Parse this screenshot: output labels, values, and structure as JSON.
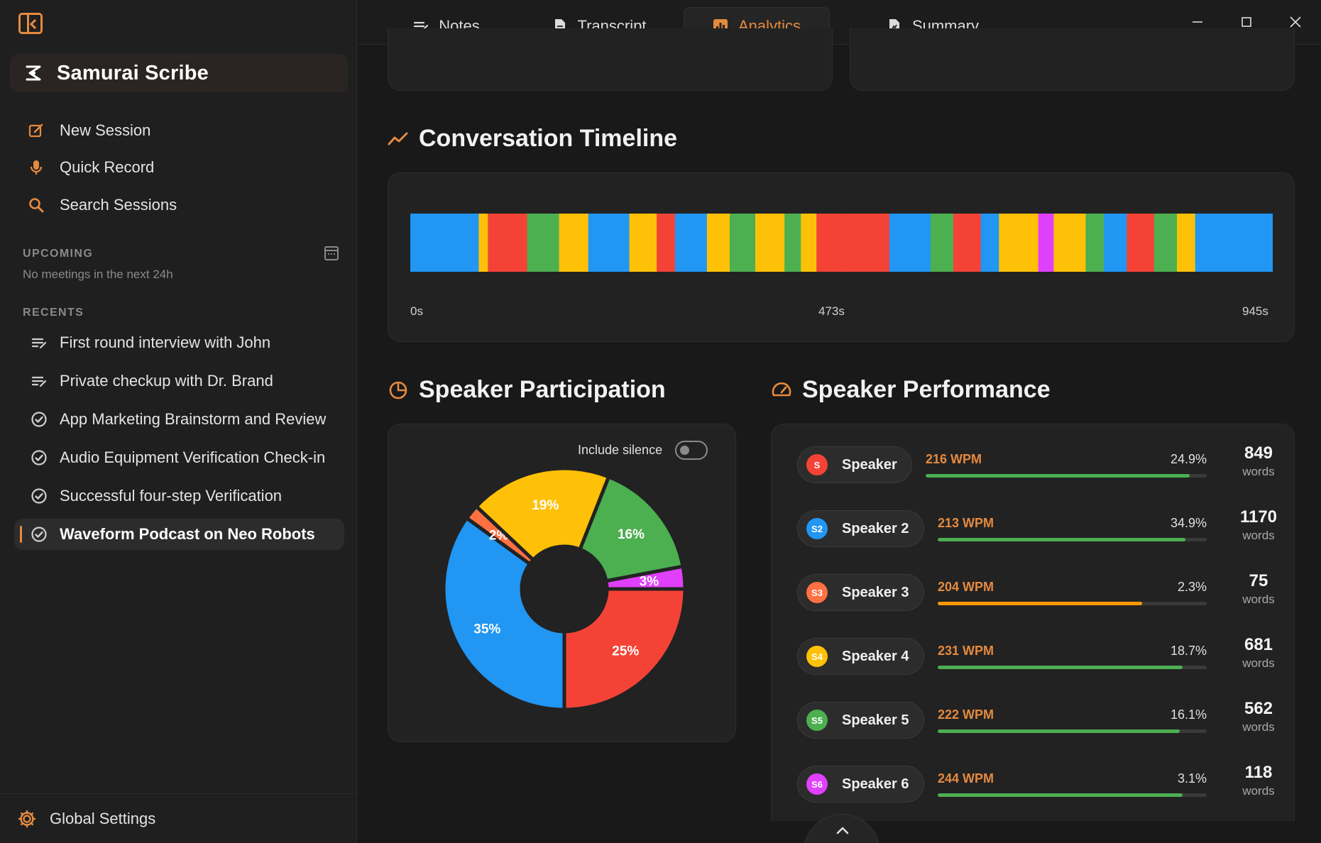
{
  "app": {
    "name": "Samurai Scribe"
  },
  "sidebar": {
    "nav": [
      {
        "label": "New Session",
        "icon": "edit-icon"
      },
      {
        "label": "Quick Record",
        "icon": "microphone-icon"
      },
      {
        "label": "Search Sessions",
        "icon": "search-icon"
      }
    ],
    "upcoming": {
      "heading": "UPCOMING",
      "empty_text": "No meetings in the next 24h"
    },
    "recents": {
      "heading": "RECENTS",
      "items": [
        {
          "label": "First round interview with John",
          "icon": "notes-icon",
          "active": false
        },
        {
          "label": "Private checkup with Dr. Brand",
          "icon": "notes-icon",
          "active": false
        },
        {
          "label": "App Marketing Brainstorm and Review",
          "icon": "check-circle-icon",
          "active": false
        },
        {
          "label": "Audio Equipment Verification Check-in",
          "icon": "check-circle-icon",
          "active": false
        },
        {
          "label": "Successful four-step Verification",
          "icon": "check-circle-icon",
          "active": false
        },
        {
          "label": "Waveform Podcast on Neo Robots",
          "icon": "check-circle-icon",
          "active": true
        }
      ]
    },
    "settings_label": "Global Settings"
  },
  "tabs": [
    {
      "label": "Notes",
      "icon": "notes-icon",
      "active": false
    },
    {
      "label": "Transcript",
      "icon": "document-icon",
      "active": false
    },
    {
      "label": "Analytics",
      "icon": "bar-chart-icon",
      "active": true
    },
    {
      "label": "Summary",
      "icon": "summary-icon",
      "active": false
    }
  ],
  "colors": {
    "accent": "#e58a3e",
    "speaker_red": "#f44336",
    "speaker_blue": "#2196f3",
    "speaker_orange": "#ff7043",
    "speaker_yellow": "#ffc107",
    "speaker_green": "#4caf50",
    "speaker_magenta": "#e040fb"
  },
  "timeline": {
    "title": "Conversation Timeline",
    "axis": {
      "start": "0s",
      "mid": "473s",
      "end": "945s"
    }
  },
  "participation": {
    "title": "Speaker Participation",
    "include_silence_label": "Include silence",
    "include_silence": false
  },
  "performance": {
    "title": "Speaker Performance",
    "words_unit": "words",
    "speakers": [
      {
        "badge": "S",
        "name": "Speaker",
        "wpm": "216 WPM",
        "share": "24.9%",
        "words": "849",
        "level": 0.94,
        "bar": "#4caf50",
        "wpm_color": "#e58a3e"
      },
      {
        "badge": "S2",
        "name": "Speaker 2",
        "wpm": "213 WPM",
        "share": "34.9%",
        "words": "1170",
        "level": 0.92,
        "bar": "#4caf50",
        "wpm_color": "#e58a3e"
      },
      {
        "badge": "S3",
        "name": "Speaker 3",
        "wpm": "204 WPM",
        "share": "2.3%",
        "words": "75",
        "level": 0.76,
        "bar": "#ff9800",
        "wpm_color": "#e58a3e"
      },
      {
        "badge": "S4",
        "name": "Speaker 4",
        "wpm": "231 WPM",
        "share": "18.7%",
        "words": "681",
        "level": 0.91,
        "bar": "#4caf50",
        "wpm_color": "#e58a3e"
      },
      {
        "badge": "S5",
        "name": "Speaker 5",
        "wpm": "222 WPM",
        "share": "16.1%",
        "words": "562",
        "level": 0.9,
        "bar": "#4caf50",
        "wpm_color": "#e58a3e"
      },
      {
        "badge": "S6",
        "name": "Speaker 6",
        "wpm": "244 WPM",
        "share": "3.1%",
        "words": "118",
        "level": 0.91,
        "bar": "#4caf50",
        "wpm_color": "#e58a3e"
      }
    ]
  },
  "chart_data": [
    {
      "type": "pie",
      "categories": [
        "Speaker",
        "Speaker 2",
        "Speaker 3",
        "Speaker 4",
        "Speaker 5",
        "Speaker 6"
      ],
      "values": [
        25,
        35,
        2,
        19,
        16,
        3
      ],
      "labels": [
        "25%",
        "35%",
        "2%",
        "19%",
        "16%",
        "3%"
      ],
      "colors": [
        "#f44336",
        "#2196f3",
        "#ff7043",
        "#ffc107",
        "#4caf50",
        "#e040fb"
      ],
      "donut": true,
      "legend": "none"
    },
    {
      "type": "bar",
      "orientation": "timeline",
      "x_range": [
        0,
        945
      ],
      "x_ticks": [
        "0s",
        "473s",
        "945s"
      ],
      "segments": [
        {
          "start": 0,
          "end": 75,
          "speaker": "Speaker 2"
        },
        {
          "start": 75,
          "end": 85,
          "speaker": "Speaker 4"
        },
        {
          "start": 85,
          "end": 128,
          "speaker": "Speaker"
        },
        {
          "start": 128,
          "end": 163,
          "speaker": "Speaker 5"
        },
        {
          "start": 163,
          "end": 195,
          "speaker": "Speaker 4"
        },
        {
          "start": 195,
          "end": 240,
          "speaker": "Speaker 2"
        },
        {
          "start": 240,
          "end": 270,
          "speaker": "Speaker 4"
        },
        {
          "start": 270,
          "end": 290,
          "speaker": "Speaker"
        },
        {
          "start": 290,
          "end": 325,
          "speaker": "Speaker 2"
        },
        {
          "start": 325,
          "end": 350,
          "speaker": "Speaker 4"
        },
        {
          "start": 350,
          "end": 378,
          "speaker": "Speaker 5"
        },
        {
          "start": 378,
          "end": 410,
          "speaker": "Speaker 4"
        },
        {
          "start": 410,
          "end": 428,
          "speaker": "Speaker 5"
        },
        {
          "start": 428,
          "end": 445,
          "speaker": "Speaker 4"
        },
        {
          "start": 445,
          "end": 478,
          "speaker": "Speaker"
        },
        {
          "start": 478,
          "end": 525,
          "speaker": "Speaker"
        },
        {
          "start": 525,
          "end": 570,
          "speaker": "Speaker 2"
        },
        {
          "start": 570,
          "end": 595,
          "speaker": "Speaker 5"
        },
        {
          "start": 595,
          "end": 625,
          "speaker": "Speaker"
        },
        {
          "start": 625,
          "end": 645,
          "speaker": "Speaker 2"
        },
        {
          "start": 645,
          "end": 688,
          "speaker": "Speaker 4"
        },
        {
          "start": 688,
          "end": 705,
          "speaker": "Speaker 6"
        },
        {
          "start": 705,
          "end": 740,
          "speaker": "Speaker 4"
        },
        {
          "start": 740,
          "end": 760,
          "speaker": "Speaker 5"
        },
        {
          "start": 760,
          "end": 785,
          "speaker": "Speaker 2"
        },
        {
          "start": 785,
          "end": 815,
          "speaker": "Speaker"
        },
        {
          "start": 815,
          "end": 840,
          "speaker": "Speaker 5"
        },
        {
          "start": 840,
          "end": 860,
          "speaker": "Speaker 4"
        },
        {
          "start": 860,
          "end": 945,
          "speaker": "Speaker 2"
        }
      ]
    }
  ]
}
